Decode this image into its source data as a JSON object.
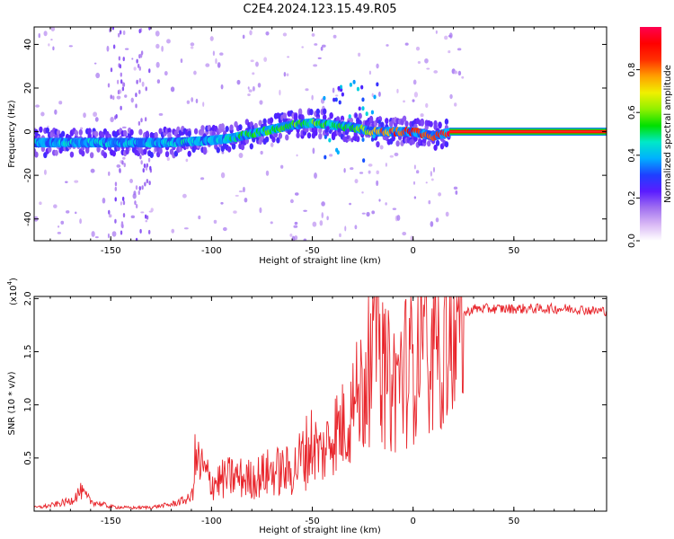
{
  "figure": {
    "title": "C2E4.2024.123.15.49.R05"
  },
  "colors": {
    "snr_line": "#e8242a",
    "ridge": "#ff2a2a",
    "colormap": [
      "#ffffff",
      "#d9b8f5",
      "#a070f0",
      "#5a1cff",
      "#1e40ff",
      "#00b0ff",
      "#00e8c8",
      "#00e000",
      "#90f000",
      "#f0f000",
      "#ffa000",
      "#ff3000",
      "#ff0000",
      "#ff0050"
    ]
  },
  "chart_data": [
    {
      "type": "heatmap",
      "xlabel": "Height of straight line (km)",
      "ylabel": "Frequency (Hz)",
      "xlim": [
        -188,
        96
      ],
      "ylim": [
        -50,
        48
      ],
      "xticks": [
        -150,
        -100,
        -50,
        0,
        50
      ],
      "yticks": [
        -40,
        -20,
        0,
        20,
        40
      ],
      "colorbar": {
        "label": "Normalized spectral amplitude",
        "range": [
          0,
          1
        ],
        "ticks": [
          "0.0",
          "0.2",
          "0.4",
          "0.6",
          "0.8"
        ]
      },
      "ridge": {
        "x": [
          -188,
          -170,
          -150,
          -130,
          -120,
          -100,
          -90,
          -80,
          -70,
          -60,
          -50,
          -40,
          -30,
          -20,
          -10,
          0,
          10,
          20,
          40,
          60,
          80,
          96
        ],
        "y": [
          -5,
          -5,
          -5,
          -5,
          -5,
          -4,
          -3,
          -1,
          1,
          3,
          4,
          3,
          2,
          0,
          0,
          0,
          -2,
          0,
          0,
          0,
          0,
          0
        ],
        "amplitude": [
          0.35,
          0.4,
          0.4,
          0.38,
          0.42,
          0.4,
          0.45,
          0.5,
          0.55,
          0.55,
          0.55,
          0.5,
          0.55,
          0.7,
          0.85,
          0.9,
          0.85,
          0.95,
          0.95,
          0.95,
          0.95,
          0.95
        ]
      }
    },
    {
      "type": "line",
      "xlabel": "Height of straight line (km)",
      "ylabel": "SNR (10 * v/v)",
      "y_multiplier_label": "(x10",
      "y_multiplier_exponent": "4",
      "xlim": [
        -188,
        96
      ],
      "ylim": [
        0,
        20200
      ],
      "xticks": [
        -150,
        -100,
        -50,
        0,
        50
      ],
      "yticks": [
        5000,
        10000,
        15000,
        20000
      ],
      "ytick_labels": [
        "0.5",
        "1.0",
        "1.5",
        "2.0"
      ],
      "series": [
        {
          "x": [
            -188,
            -180,
            -170,
            -165,
            -160,
            -150,
            -140,
            -130,
            -120,
            -110,
            -108,
            -100,
            -90,
            -80,
            -70,
            -60,
            -50,
            -45,
            -40,
            -35,
            -30,
            -25,
            -20,
            -18,
            -15,
            -10,
            -5,
            0,
            5,
            8,
            10,
            15,
            20,
            25,
            30,
            40,
            50,
            60,
            70,
            80,
            90,
            96
          ],
          "y": [
            300,
            500,
            900,
            1800,
            900,
            400,
            300,
            350,
            600,
            1200,
            4500,
            2500,
            3000,
            2800,
            3500,
            3500,
            6000,
            5000,
            7000,
            7500,
            9000,
            11000,
            14000,
            20000,
            12000,
            11000,
            12500,
            13000,
            20000,
            8000,
            14000,
            16000,
            17500,
            18500,
            19000,
            19000,
            19000,
            19000,
            19000,
            19000,
            18800,
            18800
          ]
        }
      ]
    }
  ]
}
